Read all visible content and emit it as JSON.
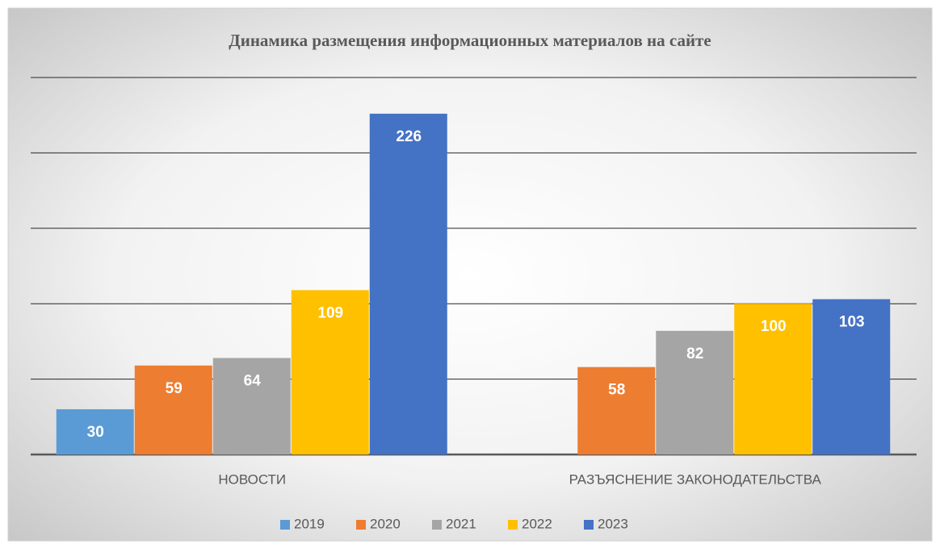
{
  "chart_data": {
    "type": "bar",
    "title": "Динамика размещения информационных материалов на сайте",
    "categories": [
      "НОВОСТИ",
      "РАЗЪЯСНЕНИЕ ЗАКОНОДАТЕЛЬСТВА"
    ],
    "series": [
      {
        "name": "2019",
        "color": "#5b9bd5",
        "values": [
          30,
          null
        ]
      },
      {
        "name": "2020",
        "color": "#ed7d31",
        "values": [
          59,
          58
        ]
      },
      {
        "name": "2021",
        "color": "#a5a5a5",
        "values": [
          64,
          82
        ]
      },
      {
        "name": "2022",
        "color": "#ffc000",
        "values": [
          109,
          100
        ]
      },
      {
        "name": "2023",
        "color": "#4472c4",
        "values": [
          226,
          103
        ]
      }
    ],
    "ylim": [
      0,
      250
    ],
    "yticks": [
      0,
      50,
      100,
      150,
      200,
      250
    ],
    "grid": true,
    "legend": "bottom"
  }
}
